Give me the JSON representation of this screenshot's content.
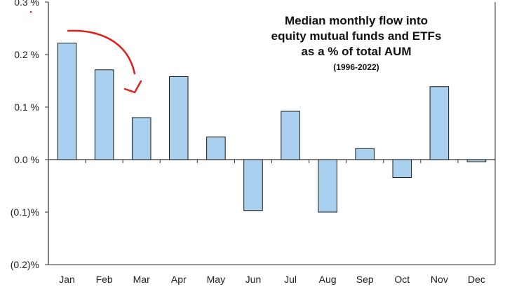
{
  "chart_data": {
    "type": "bar",
    "title_lines": [
      "Median monthly flow into",
      "equity mutual funds and ETFs",
      "as a % of total AUM"
    ],
    "subtitle": "(1996-2022)",
    "xlabel": "",
    "ylabel": "",
    "categories": [
      "Jan",
      "Feb",
      "Mar",
      "Apr",
      "May",
      "Jun",
      "Jul",
      "Aug",
      "Sep",
      "Oct",
      "Nov",
      "Dec"
    ],
    "values": [
      0.222,
      0.171,
      0.08,
      0.158,
      0.043,
      -0.097,
      0.092,
      -0.1,
      0.021,
      -0.034,
      0.139,
      -0.004
    ],
    "ylim": [
      -0.2,
      0.3
    ],
    "yticks": [
      0.3,
      0.2,
      0.1,
      0.0,
      -0.1,
      -0.2
    ],
    "ytick_labels": [
      "0.3 %",
      "0.2 %",
      "0.1 %",
      "0.0 %",
      "(0.1)%",
      "(0.2)%"
    ],
    "grid": false,
    "legend": "none",
    "colors": {
      "bar_fill": "#a9d0ee",
      "bar_stroke": "#1a1a1a",
      "axis": "#333333",
      "annotation_arrow": "#e0201c"
    }
  }
}
